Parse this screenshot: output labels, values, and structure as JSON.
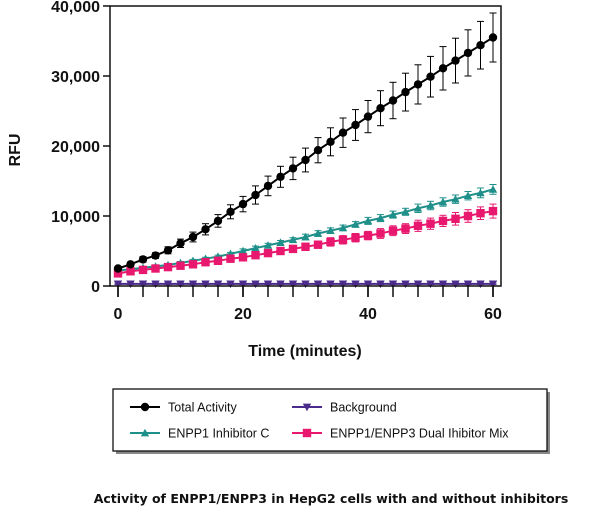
{
  "chart_data": {
    "type": "line",
    "title": "",
    "caption": "Activity of ENPP1/ENPP3 in HepG2 cells with and without inhibitors",
    "xlabel": "Time (minutes)",
    "ylabel": "RFU",
    "xlim": [
      0,
      60
    ],
    "ylim": [
      0,
      40000
    ],
    "xticks": [
      0,
      20,
      40,
      60
    ],
    "xtick_labels": [
      "0",
      "20",
      "40",
      "60"
    ],
    "yticks": [
      0,
      10000,
      20000,
      30000,
      40000
    ],
    "ytick_labels": [
      "0",
      "10,000",
      "20,000",
      "30,000",
      "40,000"
    ],
    "grid": false,
    "legend_position": "bottom",
    "x": [
      0,
      2,
      4,
      6,
      8,
      10,
      12,
      14,
      16,
      18,
      20,
      22,
      24,
      26,
      28,
      30,
      32,
      34,
      36,
      38,
      40,
      42,
      44,
      46,
      48,
      50,
      52,
      54,
      56,
      58,
      60
    ],
    "series": [
      {
        "name": "Total Activity",
        "color": "#000000",
        "marker": "circle",
        "values": [
          2500,
          3100,
          3800,
          4350,
          5100,
          6100,
          7000,
          8100,
          9300,
          10600,
          11700,
          13000,
          14300,
          15600,
          16800,
          18000,
          19400,
          20600,
          21900,
          23000,
          24200,
          25400,
          26500,
          27700,
          28800,
          29900,
          31100,
          32200,
          33300,
          34400,
          35500
        ],
        "errors": [
          300,
          300,
          400,
          400,
          500,
          600,
          700,
          800,
          900,
          1000,
          1100,
          1300,
          1400,
          1500,
          1600,
          1700,
          1800,
          2000,
          2100,
          2200,
          2300,
          2500,
          2600,
          2700,
          2800,
          2900,
          3100,
          3200,
          3300,
          3400,
          3500
        ]
      },
      {
        "name": "Background",
        "color": "#4b2c8c",
        "marker": "triangle-down",
        "values": [
          300,
          300,
          300,
          300,
          300,
          300,
          300,
          300,
          300,
          300,
          300,
          300,
          300,
          300,
          300,
          300,
          300,
          300,
          300,
          300,
          300,
          300,
          300,
          300,
          300,
          300,
          300,
          300,
          300,
          300,
          300
        ],
        "errors": [
          100,
          100,
          100,
          100,
          100,
          100,
          100,
          100,
          100,
          100,
          100,
          100,
          100,
          100,
          100,
          100,
          100,
          100,
          100,
          100,
          100,
          100,
          100,
          100,
          100,
          100,
          100,
          100,
          100,
          100,
          100
        ]
      },
      {
        "name": "ENPP1 Inhibitor C",
        "color": "#1f8f8a",
        "marker": "triangle-up",
        "values": [
          2200,
          2400,
          2600,
          2800,
          3000,
          3300,
          3600,
          3900,
          4200,
          4600,
          5000,
          5400,
          5800,
          6200,
          6600,
          7000,
          7500,
          7900,
          8300,
          8800,
          9300,
          9700,
          10200,
          10600,
          11100,
          11500,
          12000,
          12400,
          12900,
          13300,
          13800
        ],
        "errors": [
          100,
          100,
          100,
          100,
          200,
          200,
          200,
          200,
          200,
          200,
          300,
          300,
          300,
          300,
          300,
          400,
          400,
          400,
          400,
          400,
          500,
          500,
          500,
          500,
          600,
          600,
          600,
          600,
          600,
          700,
          700
        ]
      },
      {
        "name": "ENPP1/ENPP3 Dual Ihibitor Mix",
        "color": "#e8186e",
        "marker": "square",
        "values": [
          1800,
          2100,
          2300,
          2500,
          2700,
          2900,
          3100,
          3400,
          3600,
          3900,
          4100,
          4400,
          4700,
          5000,
          5300,
          5600,
          5900,
          6300,
          6600,
          6900,
          7200,
          7500,
          7900,
          8200,
          8600,
          8900,
          9300,
          9600,
          10000,
          10400,
          10700
        ],
        "errors": [
          200,
          200,
          200,
          200,
          200,
          300,
          300,
          300,
          300,
          400,
          400,
          400,
          400,
          500,
          500,
          500,
          500,
          600,
          600,
          600,
          600,
          700,
          700,
          700,
          800,
          800,
          800,
          900,
          900,
          900,
          1000
        ]
      }
    ]
  }
}
